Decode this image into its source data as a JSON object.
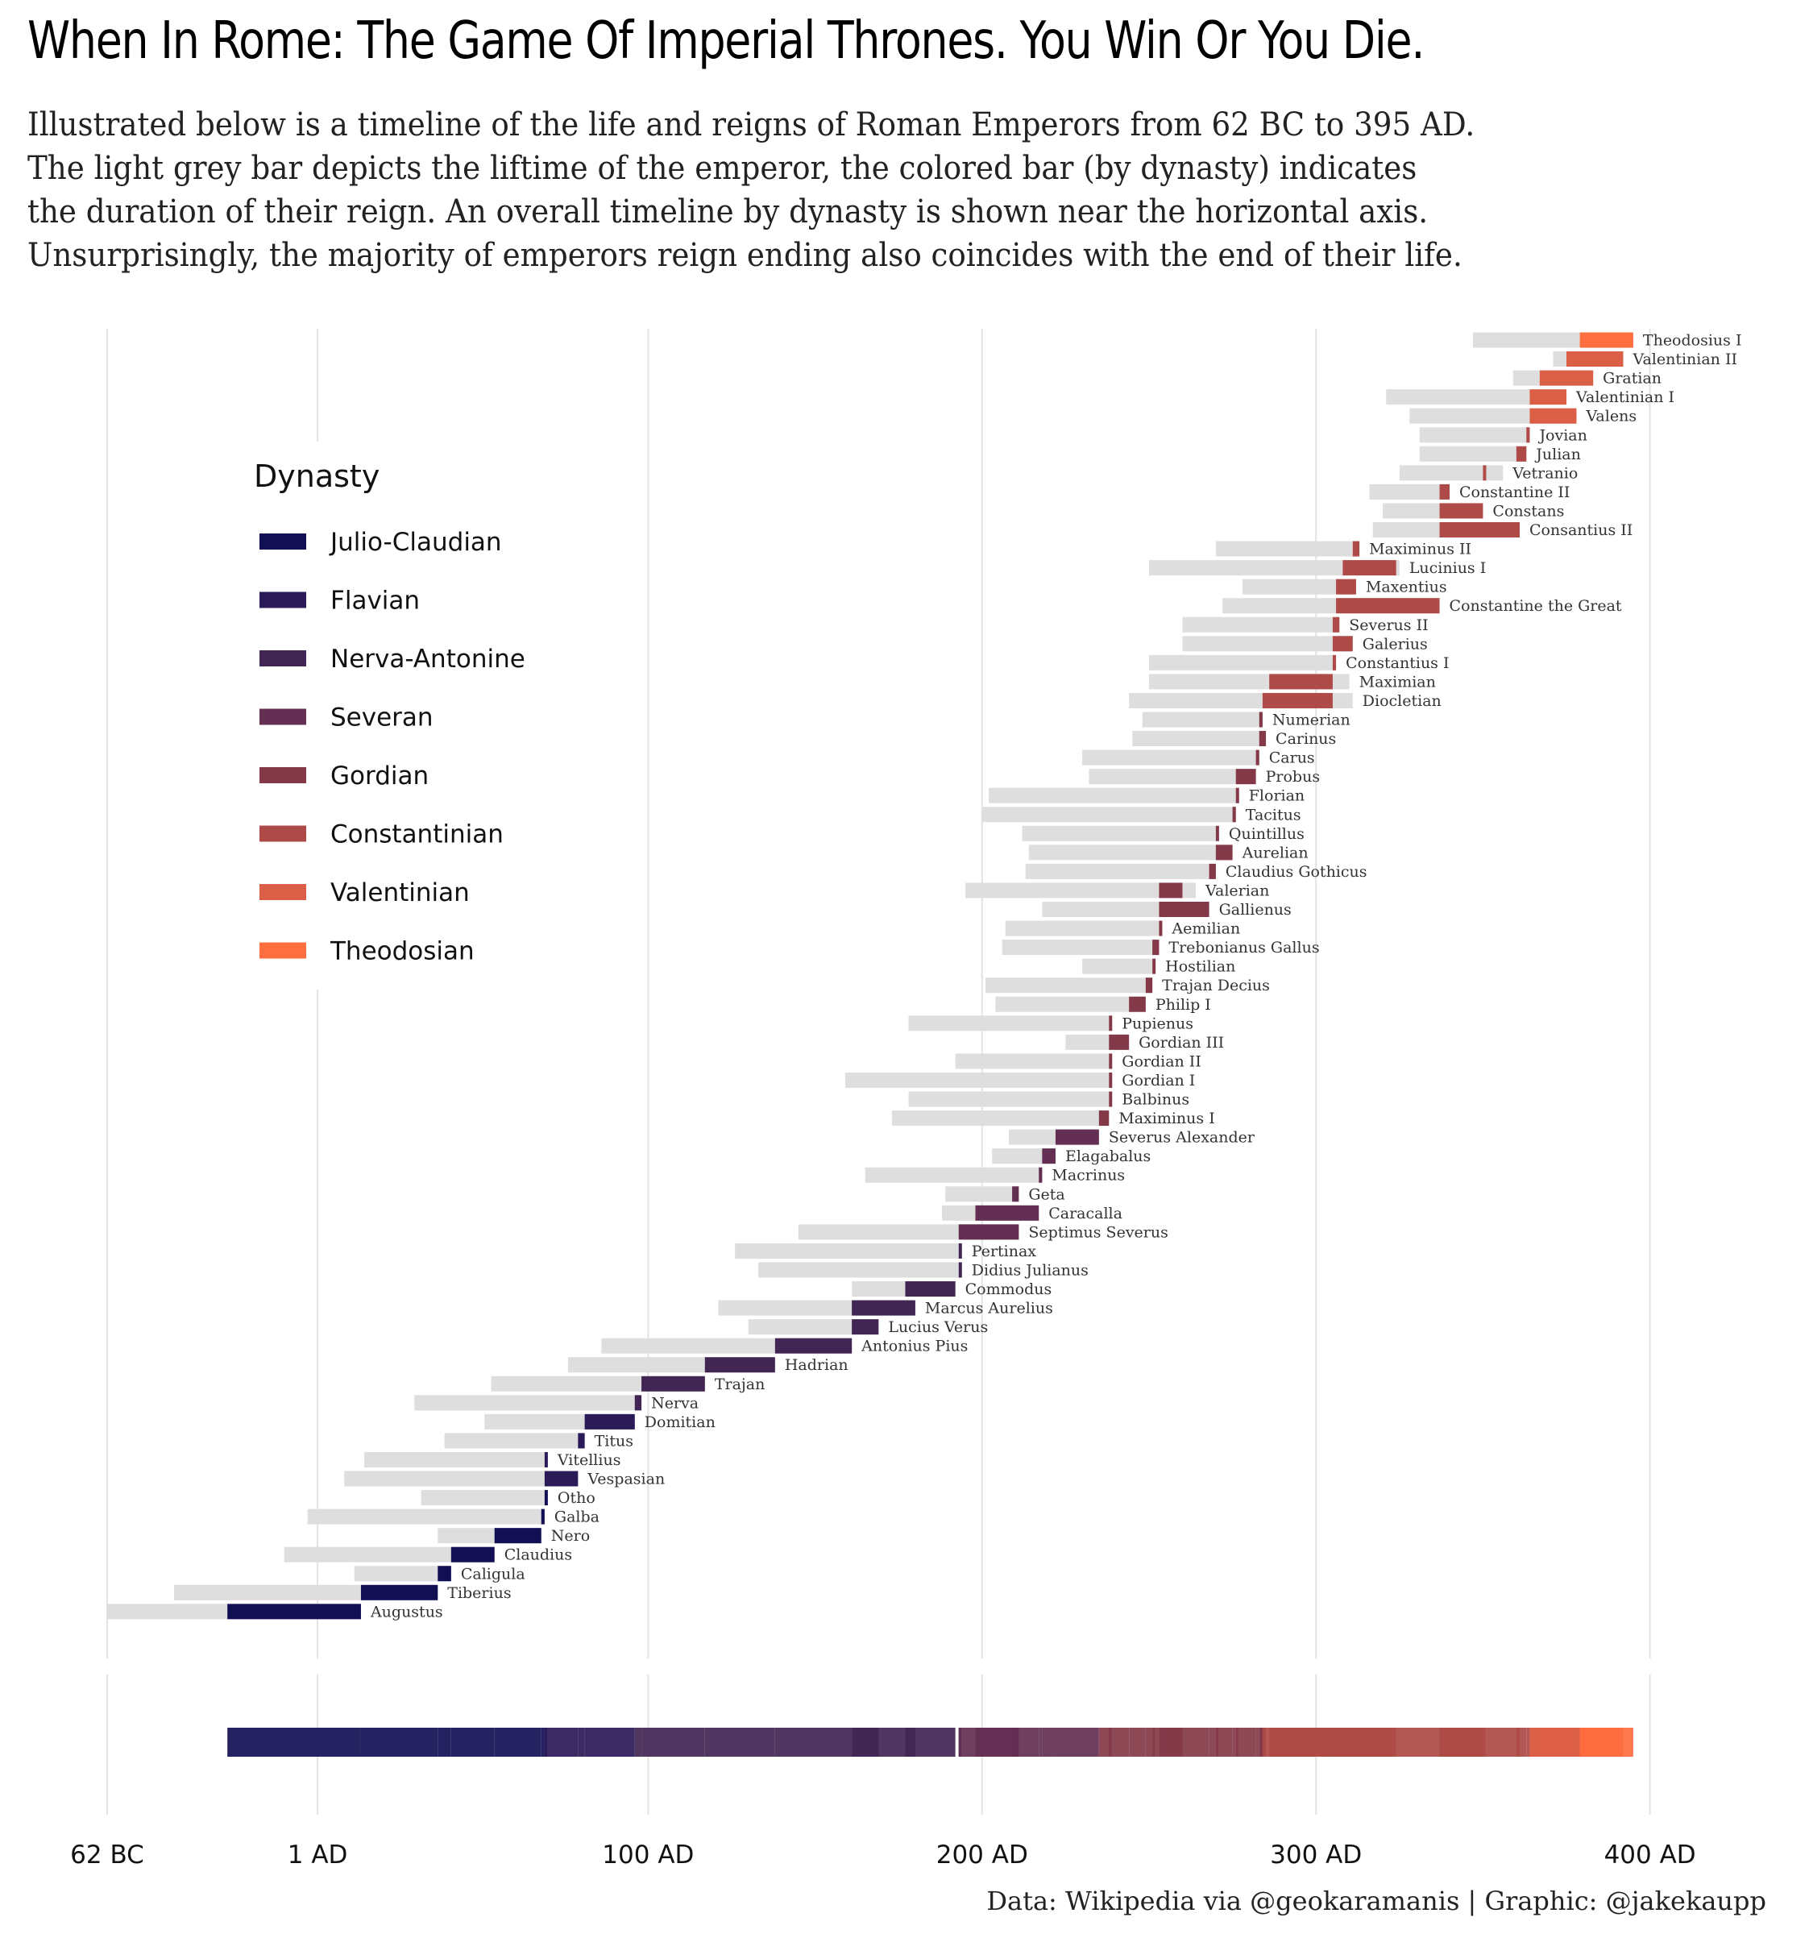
{
  "title": "When In Rome: The Game Of Imperial Thrones. You Win Or You Die.",
  "subtitle_lines": [
    "Illustrated below is a timeline of the life and reigns of Roman Emperors from 62 BC to 395 AD.",
    "The light grey bar depicts the liftime of the emperor, the colored bar (by dynasty) indicates",
    "the duration of their reign. An overall timeline by dynasty is shown near the horizontal axis.",
    "Unsurprisingly, the majority of emperors reign ending also coincides with the end of their life."
  ],
  "caption": "Data: Wikipedia via @geokaramanis | Graphic: @jakekaupp",
  "colors": {
    "lifetime": "#dedede",
    "gridline": "#e3e3e3"
  },
  "chart_data": {
    "type": "bar",
    "orientation": "horizontal-range",
    "x_domain": [
      -62,
      458
    ],
    "x_ticks": [
      {
        "value": -62,
        "label": "62 BC"
      },
      {
        "value": 1,
        "label": "1 AD"
      },
      {
        "value": 100,
        "label": "100 AD"
      },
      {
        "value": 200,
        "label": "200 AD"
      },
      {
        "value": 300,
        "label": "300 AD"
      },
      {
        "value": 400,
        "label": "400 AD"
      }
    ],
    "legend_title": "Dynasty",
    "dynasties": [
      {
        "name": "Julio-Claudian",
        "color": "#120f54"
      },
      {
        "name": "Flavian",
        "color": "#2b1a58"
      },
      {
        "name": "Nerva-Antonine",
        "color": "#412552"
      },
      {
        "name": "Severan",
        "color": "#632f52"
      },
      {
        "name": "Gordian",
        "color": "#843949"
      },
      {
        "name": "Constantinian",
        "color": "#ae4a47"
      },
      {
        "name": "Valentinian",
        "color": "#db5e46"
      },
      {
        "name": "Theodosian",
        "color": "#ff6e3f"
      }
    ],
    "emperors": [
      {
        "name": "Augustus",
        "dynasty": "Julio-Claudian",
        "birth": -62,
        "death": 14,
        "reign_start": -26,
        "reign_end": 14
      },
      {
        "name": "Tiberius",
        "dynasty": "Julio-Claudian",
        "birth": -42,
        "death": 37,
        "reign_start": 14,
        "reign_end": 37
      },
      {
        "name": "Caligula",
        "dynasty": "Julio-Claudian",
        "birth": 12,
        "death": 41,
        "reign_start": 37,
        "reign_end": 41
      },
      {
        "name": "Claudius",
        "dynasty": "Julio-Claudian",
        "birth": -9,
        "death": 54,
        "reign_start": 41,
        "reign_end": 54
      },
      {
        "name": "Nero",
        "dynasty": "Julio-Claudian",
        "birth": 37,
        "death": 68,
        "reign_start": 54,
        "reign_end": 68
      },
      {
        "name": "Galba",
        "dynasty": "Julio-Claudian",
        "birth": -2,
        "death": 69,
        "reign_start": 68,
        "reign_end": 69
      },
      {
        "name": "Otho",
        "dynasty": "Julio-Claudian",
        "birth": 32,
        "death": 69,
        "reign_start": 69,
        "reign_end": 69
      },
      {
        "name": "Vespasian",
        "dynasty": "Flavian",
        "birth": 9,
        "death": 79,
        "reign_start": 69,
        "reign_end": 79
      },
      {
        "name": "Vitellius",
        "dynasty": "Flavian",
        "birth": 15,
        "death": 69,
        "reign_start": 69,
        "reign_end": 69
      },
      {
        "name": "Titus",
        "dynasty": "Flavian",
        "birth": 39,
        "death": 81,
        "reign_start": 79,
        "reign_end": 81
      },
      {
        "name": "Domitian",
        "dynasty": "Flavian",
        "birth": 51,
        "death": 96,
        "reign_start": 81,
        "reign_end": 96
      },
      {
        "name": "Nerva",
        "dynasty": "Nerva-Antonine",
        "birth": 30,
        "death": 98,
        "reign_start": 96,
        "reign_end": 98
      },
      {
        "name": "Trajan",
        "dynasty": "Nerva-Antonine",
        "birth": 53,
        "death": 117,
        "reign_start": 98,
        "reign_end": 117
      },
      {
        "name": "Hadrian",
        "dynasty": "Nerva-Antonine",
        "birth": 76,
        "death": 138,
        "reign_start": 117,
        "reign_end": 138
      },
      {
        "name": "Antonius Pius",
        "dynasty": "Nerva-Antonine",
        "birth": 86,
        "death": 161,
        "reign_start": 138,
        "reign_end": 161
      },
      {
        "name": "Lucius Verus",
        "dynasty": "Nerva-Antonine",
        "birth": 130,
        "death": 169,
        "reign_start": 161,
        "reign_end": 169
      },
      {
        "name": "Marcus Aurelius",
        "dynasty": "Nerva-Antonine",
        "birth": 121,
        "death": 180,
        "reign_start": 161,
        "reign_end": 180
      },
      {
        "name": "Commodus",
        "dynasty": "Nerva-Antonine",
        "birth": 161,
        "death": 192,
        "reign_start": 177,
        "reign_end": 192
      },
      {
        "name": "Didius Julianus",
        "dynasty": "Nerva-Antonine",
        "birth": 133,
        "death": 193,
        "reign_start": 193,
        "reign_end": 193
      },
      {
        "name": "Pertinax",
        "dynasty": "Nerva-Antonine",
        "birth": 126,
        "death": 193,
        "reign_start": 193,
        "reign_end": 193
      },
      {
        "name": "Septimus Severus",
        "dynasty": "Severan",
        "birth": 145,
        "death": 211,
        "reign_start": 193,
        "reign_end": 211
      },
      {
        "name": "Caracalla",
        "dynasty": "Severan",
        "birth": 188,
        "death": 217,
        "reign_start": 198,
        "reign_end": 217
      },
      {
        "name": "Geta",
        "dynasty": "Severan",
        "birth": 189,
        "death": 211,
        "reign_start": 209,
        "reign_end": 211
      },
      {
        "name": "Macrinus",
        "dynasty": "Severan",
        "birth": 165,
        "death": 218,
        "reign_start": 217,
        "reign_end": 218
      },
      {
        "name": "Elagabalus",
        "dynasty": "Severan",
        "birth": 203,
        "death": 222,
        "reign_start": 218,
        "reign_end": 222
      },
      {
        "name": "Severus Alexander",
        "dynasty": "Severan",
        "birth": 208,
        "death": 235,
        "reign_start": 222,
        "reign_end": 235
      },
      {
        "name": "Maximinus I",
        "dynasty": "Gordian",
        "birth": 173,
        "death": 238,
        "reign_start": 235,
        "reign_end": 238
      },
      {
        "name": "Balbinus",
        "dynasty": "Gordian",
        "birth": 178,
        "death": 238,
        "reign_start": 238,
        "reign_end": 238
      },
      {
        "name": "Gordian I",
        "dynasty": "Gordian",
        "birth": 159,
        "death": 238,
        "reign_start": 238,
        "reign_end": 238
      },
      {
        "name": "Gordian II",
        "dynasty": "Gordian",
        "birth": 192,
        "death": 238,
        "reign_start": 238,
        "reign_end": 238
      },
      {
        "name": "Gordian III",
        "dynasty": "Gordian",
        "birth": 225,
        "death": 244,
        "reign_start": 238,
        "reign_end": 244
      },
      {
        "name": "Pupienus",
        "dynasty": "Gordian",
        "birth": 178,
        "death": 238,
        "reign_start": 238,
        "reign_end": 238
      },
      {
        "name": "Philip I",
        "dynasty": "Gordian",
        "birth": 204,
        "death": 249,
        "reign_start": 244,
        "reign_end": 249
      },
      {
        "name": "Trajan Decius",
        "dynasty": "Gordian",
        "birth": 201,
        "death": 251,
        "reign_start": 249,
        "reign_end": 251
      },
      {
        "name": "Hostilian",
        "dynasty": "Gordian",
        "birth": 230,
        "death": 251,
        "reign_start": 251,
        "reign_end": 251
      },
      {
        "name": "Trebonianus Gallus",
        "dynasty": "Gordian",
        "birth": 206,
        "death": 253,
        "reign_start": 251,
        "reign_end": 253
      },
      {
        "name": "Aemilian",
        "dynasty": "Gordian",
        "birth": 207,
        "death": 253,
        "reign_start": 253,
        "reign_end": 253
      },
      {
        "name": "Gallienus",
        "dynasty": "Gordian",
        "birth": 218,
        "death": 268,
        "reign_start": 253,
        "reign_end": 268
      },
      {
        "name": "Valerian",
        "dynasty": "Gordian",
        "birth": 195,
        "death": 264,
        "reign_start": 253,
        "reign_end": 260
      },
      {
        "name": "Claudius Gothicus",
        "dynasty": "Gordian",
        "birth": 213,
        "death": 270,
        "reign_start": 268,
        "reign_end": 270
      },
      {
        "name": "Aurelian",
        "dynasty": "Gordian",
        "birth": 214,
        "death": 275,
        "reign_start": 270,
        "reign_end": 275
      },
      {
        "name": "Quintillus",
        "dynasty": "Gordian",
        "birth": 212,
        "death": 270,
        "reign_start": 270,
        "reign_end": 270
      },
      {
        "name": "Tacitus",
        "dynasty": "Gordian",
        "birth": 200,
        "death": 276,
        "reign_start": 275,
        "reign_end": 276
      },
      {
        "name": "Florian",
        "dynasty": "Gordian",
        "birth": 202,
        "death": 276,
        "reign_start": 276,
        "reign_end": 276
      },
      {
        "name": "Probus",
        "dynasty": "Gordian",
        "birth": 232,
        "death": 282,
        "reign_start": 276,
        "reign_end": 282
      },
      {
        "name": "Carus",
        "dynasty": "Gordian",
        "birth": 230,
        "death": 283,
        "reign_start": 282,
        "reign_end": 283
      },
      {
        "name": "Carinus",
        "dynasty": "Gordian",
        "birth": 245,
        "death": 285,
        "reign_start": 283,
        "reign_end": 285
      },
      {
        "name": "Numerian",
        "dynasty": "Gordian",
        "birth": 248,
        "death": 284,
        "reign_start": 283,
        "reign_end": 284
      },
      {
        "name": "Diocletian",
        "dynasty": "Constantinian",
        "birth": 244,
        "death": 311,
        "reign_start": 284,
        "reign_end": 305
      },
      {
        "name": "Maximian",
        "dynasty": "Constantinian",
        "birth": 250,
        "death": 310,
        "reign_start": 286,
        "reign_end": 305
      },
      {
        "name": "Constantius I",
        "dynasty": "Constantinian",
        "birth": 250,
        "death": 306,
        "reign_start": 305,
        "reign_end": 306
      },
      {
        "name": "Galerius",
        "dynasty": "Constantinian",
        "birth": 260,
        "death": 311,
        "reign_start": 305,
        "reign_end": 311
      },
      {
        "name": "Severus II",
        "dynasty": "Constantinian",
        "birth": 260,
        "death": 307,
        "reign_start": 305,
        "reign_end": 307
      },
      {
        "name": "Constantine the Great",
        "dynasty": "Constantinian",
        "birth": 272,
        "death": 337,
        "reign_start": 306,
        "reign_end": 337
      },
      {
        "name": "Maxentius",
        "dynasty": "Constantinian",
        "birth": 278,
        "death": 312,
        "reign_start": 306,
        "reign_end": 312
      },
      {
        "name": "Lucinius I",
        "dynasty": "Constantinian",
        "birth": 250,
        "death": 325,
        "reign_start": 308,
        "reign_end": 324
      },
      {
        "name": "Maximinus II",
        "dynasty": "Constantinian",
        "birth": 270,
        "death": 313,
        "reign_start": 311,
        "reign_end": 313
      },
      {
        "name": "Consantius II",
        "dynasty": "Constantinian",
        "birth": 317,
        "death": 361,
        "reign_start": 337,
        "reign_end": 361
      },
      {
        "name": "Constans",
        "dynasty": "Constantinian",
        "birth": 320,
        "death": 350,
        "reign_start": 337,
        "reign_end": 350
      },
      {
        "name": "Constantine II",
        "dynasty": "Constantinian",
        "birth": 316,
        "death": 340,
        "reign_start": 337,
        "reign_end": 340
      },
      {
        "name": "Vetranio",
        "dynasty": "Constantinian",
        "birth": 325,
        "death": 356,
        "reign_start": 350,
        "reign_end": 350
      },
      {
        "name": "Julian",
        "dynasty": "Constantinian",
        "birth": 331,
        "death": 363,
        "reign_start": 360,
        "reign_end": 363
      },
      {
        "name": "Jovian",
        "dynasty": "Constantinian",
        "birth": 331,
        "death": 364,
        "reign_start": 363,
        "reign_end": 364
      },
      {
        "name": "Valens",
        "dynasty": "Valentinian",
        "birth": 328,
        "death": 378,
        "reign_start": 364,
        "reign_end": 378
      },
      {
        "name": "Valentinian I",
        "dynasty": "Valentinian",
        "birth": 321,
        "death": 375,
        "reign_start": 364,
        "reign_end": 375
      },
      {
        "name": "Gratian",
        "dynasty": "Valentinian",
        "birth": 359,
        "death": 383,
        "reign_start": 367,
        "reign_end": 383
      },
      {
        "name": "Valentinian II",
        "dynasty": "Valentinian",
        "birth": 371,
        "death": 392,
        "reign_start": 375,
        "reign_end": 392
      },
      {
        "name": "Theodosius I",
        "dynasty": "Theodosian",
        "birth": 347,
        "death": 395,
        "reign_start": 379,
        "reign_end": 395
      }
    ]
  }
}
